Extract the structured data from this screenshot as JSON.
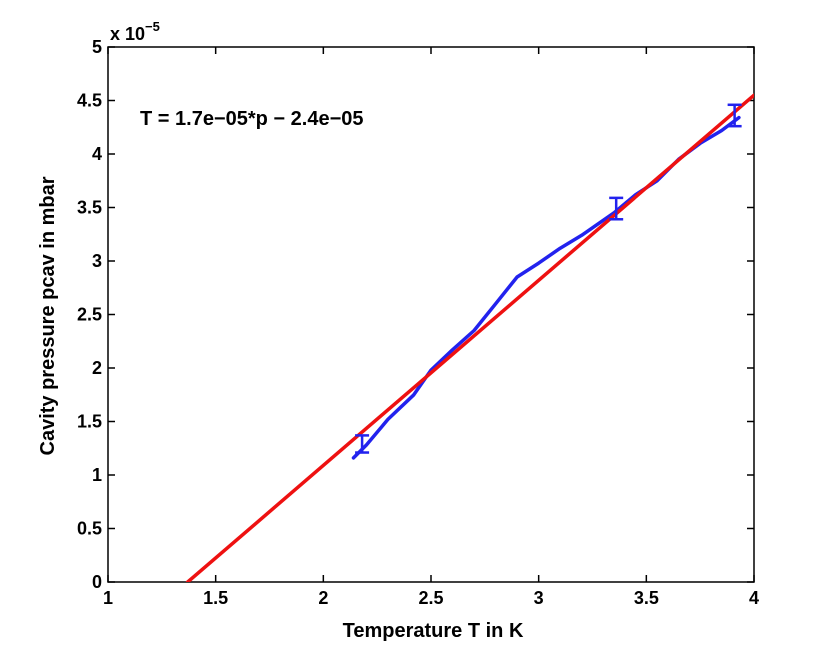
{
  "chart_data": {
    "type": "line",
    "xlabel": "Temperature T in K",
    "ylabel": "Cavity pressure pcav in mbar",
    "xlim": [
      1,
      4
    ],
    "ylim": [
      0,
      5
    ],
    "y_exponent_label": "x 10",
    "y_exponent_power": "−5",
    "xticks": [
      "1",
      "1.5",
      "2",
      "2.5",
      "3",
      "3.5",
      "4"
    ],
    "yticks": [
      "0",
      "0.5",
      "1",
      "1.5",
      "2",
      "2.5",
      "3",
      "3.5",
      "4",
      "4.5",
      "5"
    ],
    "annotation": "T = 1.7e−05*p − 2.4e−05",
    "grid": false,
    "series": [
      {
        "color": "#2222ee",
        "x": [
          2.14,
          2.2,
          2.3,
          2.42,
          2.5,
          2.6,
          2.7,
          2.8,
          2.9,
          3.0,
          3.1,
          3.2,
          3.35,
          3.45,
          3.55,
          3.65,
          3.75,
          3.85,
          3.93
        ],
        "y": [
          1.16,
          1.28,
          1.52,
          1.75,
          1.98,
          2.17,
          2.35,
          2.6,
          2.85,
          2.98,
          3.12,
          3.24,
          3.45,
          3.62,
          3.75,
          3.95,
          4.1,
          4.22,
          4.34
        ]
      },
      {
        "color": "#ee1111",
        "x": [
          1.37,
          4.0
        ],
        "y": [
          0.0,
          4.55
        ]
      }
    ],
    "error_bars": [
      {
        "x": 2.18,
        "y": 1.29,
        "low": 1.21,
        "high": 1.37
      },
      {
        "x": 3.36,
        "y": 3.49,
        "low": 3.39,
        "high": 3.59
      },
      {
        "x": 3.91,
        "y": 4.36,
        "low": 4.26,
        "high": 4.46
      }
    ]
  }
}
